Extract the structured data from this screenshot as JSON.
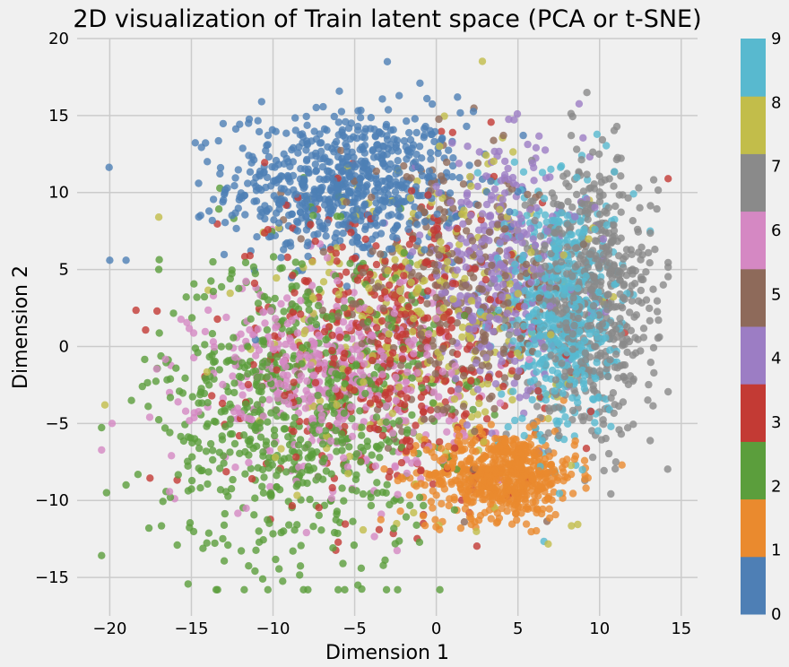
{
  "chart_data": {
    "type": "scatter",
    "title": "2D visualization of Train latent space (PCA or t-SNE)",
    "xlabel": "Dimension 1",
    "ylabel": "Dimension 2",
    "xlim": [
      -22,
      16
    ],
    "ylim": [
      -17.5,
      20
    ],
    "xticks": [
      -20,
      -15,
      -10,
      -5,
      0,
      5,
      10,
      15
    ],
    "xtick_labels": [
      "−20",
      "−15",
      "−10",
      "−5",
      "0",
      "5",
      "10",
      "15"
    ],
    "yticks": [
      -15,
      -10,
      -5,
      0,
      5,
      10,
      15,
      20
    ],
    "ytick_labels": [
      "−15",
      "−10",
      "−5",
      "0",
      "5",
      "10",
      "15",
      "20"
    ],
    "grid": true,
    "colorbar": {
      "labels": [
        "0",
        "1",
        "2",
        "3",
        "4",
        "5",
        "6",
        "7",
        "8",
        "9"
      ],
      "colors": [
        "#4e7fb5",
        "#ea8a2e",
        "#5b9e3c",
        "#c33a34",
        "#9c7dc4",
        "#8e6a5a",
        "#d588c3",
        "#8a8a8a",
        "#c2bd4a",
        "#58b9cf"
      ]
    },
    "classes": [
      {
        "label": "0",
        "cx": -5.5,
        "cy": 10.5,
        "sx": 3.6,
        "sy": 2.4,
        "n": 700,
        "outliers": [
          [
            -20,
            5.6
          ],
          [
            -19,
            5.6
          ],
          [
            -3,
            18.5
          ],
          [
            -1,
            17.1
          ],
          [
            1.3,
            16.2
          ],
          [
            -10.7,
            15.9
          ],
          [
            -11.5,
            14.5
          ]
        ]
      },
      {
        "label": "1",
        "cx": 4.0,
        "cy": -8.3,
        "sx": 2.3,
        "sy": 1.4,
        "n": 620,
        "outliers": [
          [
            -2.2,
            -10.7
          ],
          [
            1.5,
            -11.8
          ],
          [
            0.2,
            -11.9
          ],
          [
            6.2,
            -10.6
          ]
        ]
      },
      {
        "label": "2",
        "cx": -8.5,
        "cy": -4.0,
        "sx": 4.2,
        "sy": 5.2,
        "n": 720,
        "outliers": [
          [
            -20.2,
            -9.5
          ],
          [
            -19,
            -9
          ],
          [
            -17.6,
            -11.8
          ],
          [
            -4.8,
            -15.5
          ],
          [
            -4.6,
            -14.4
          ],
          [
            -18.0,
            -2.6
          ],
          [
            -17.0,
            5.0
          ]
        ]
      },
      {
        "label": "3",
        "cx": -3.0,
        "cy": 0.0,
        "sx": 4.8,
        "sy": 5.0,
        "n": 480,
        "outliers": [
          [
            -3.5,
            -11.9
          ],
          [
            -17.1,
            2.3
          ],
          [
            1.0,
            13.9
          ]
        ]
      },
      {
        "label": "4",
        "cx": 4.0,
        "cy": 5.0,
        "sx": 2.6,
        "sy": 3.8,
        "n": 360,
        "outliers": []
      },
      {
        "label": "5",
        "cx": 1.0,
        "cy": 3.0,
        "sx": 3.5,
        "sy": 4.2,
        "n": 330,
        "outliers": []
      },
      {
        "label": "6",
        "cx": -6.5,
        "cy": -2.0,
        "sx": 4.0,
        "sy": 3.2,
        "n": 480,
        "outliers": []
      },
      {
        "label": "7",
        "cx": 9.5,
        "cy": 3.0,
        "sx": 2.0,
        "sy": 4.4,
        "n": 620,
        "outliers": [
          [
            13.9,
            4.0
          ],
          [
            12.4,
            10.3
          ],
          [
            8.6,
            12.8
          ],
          [
            11.0,
            -7.5
          ]
        ]
      },
      {
        "label": "8",
        "cx": -0.5,
        "cy": 2.0,
        "sx": 4.6,
        "sy": 5.0,
        "n": 330,
        "outliers": [
          [
            -20.3,
            -3.8
          ],
          [
            -17,
            8.4
          ],
          [
            0.2,
            13.0
          ]
        ]
      },
      {
        "label": "9",
        "cx": 7.7,
        "cy": 2.2,
        "sx": 1.6,
        "sy": 4.2,
        "n": 560,
        "outliers": [
          [
            13.1,
            7.5
          ],
          [
            6.5,
            11.3
          ]
        ]
      }
    ]
  }
}
